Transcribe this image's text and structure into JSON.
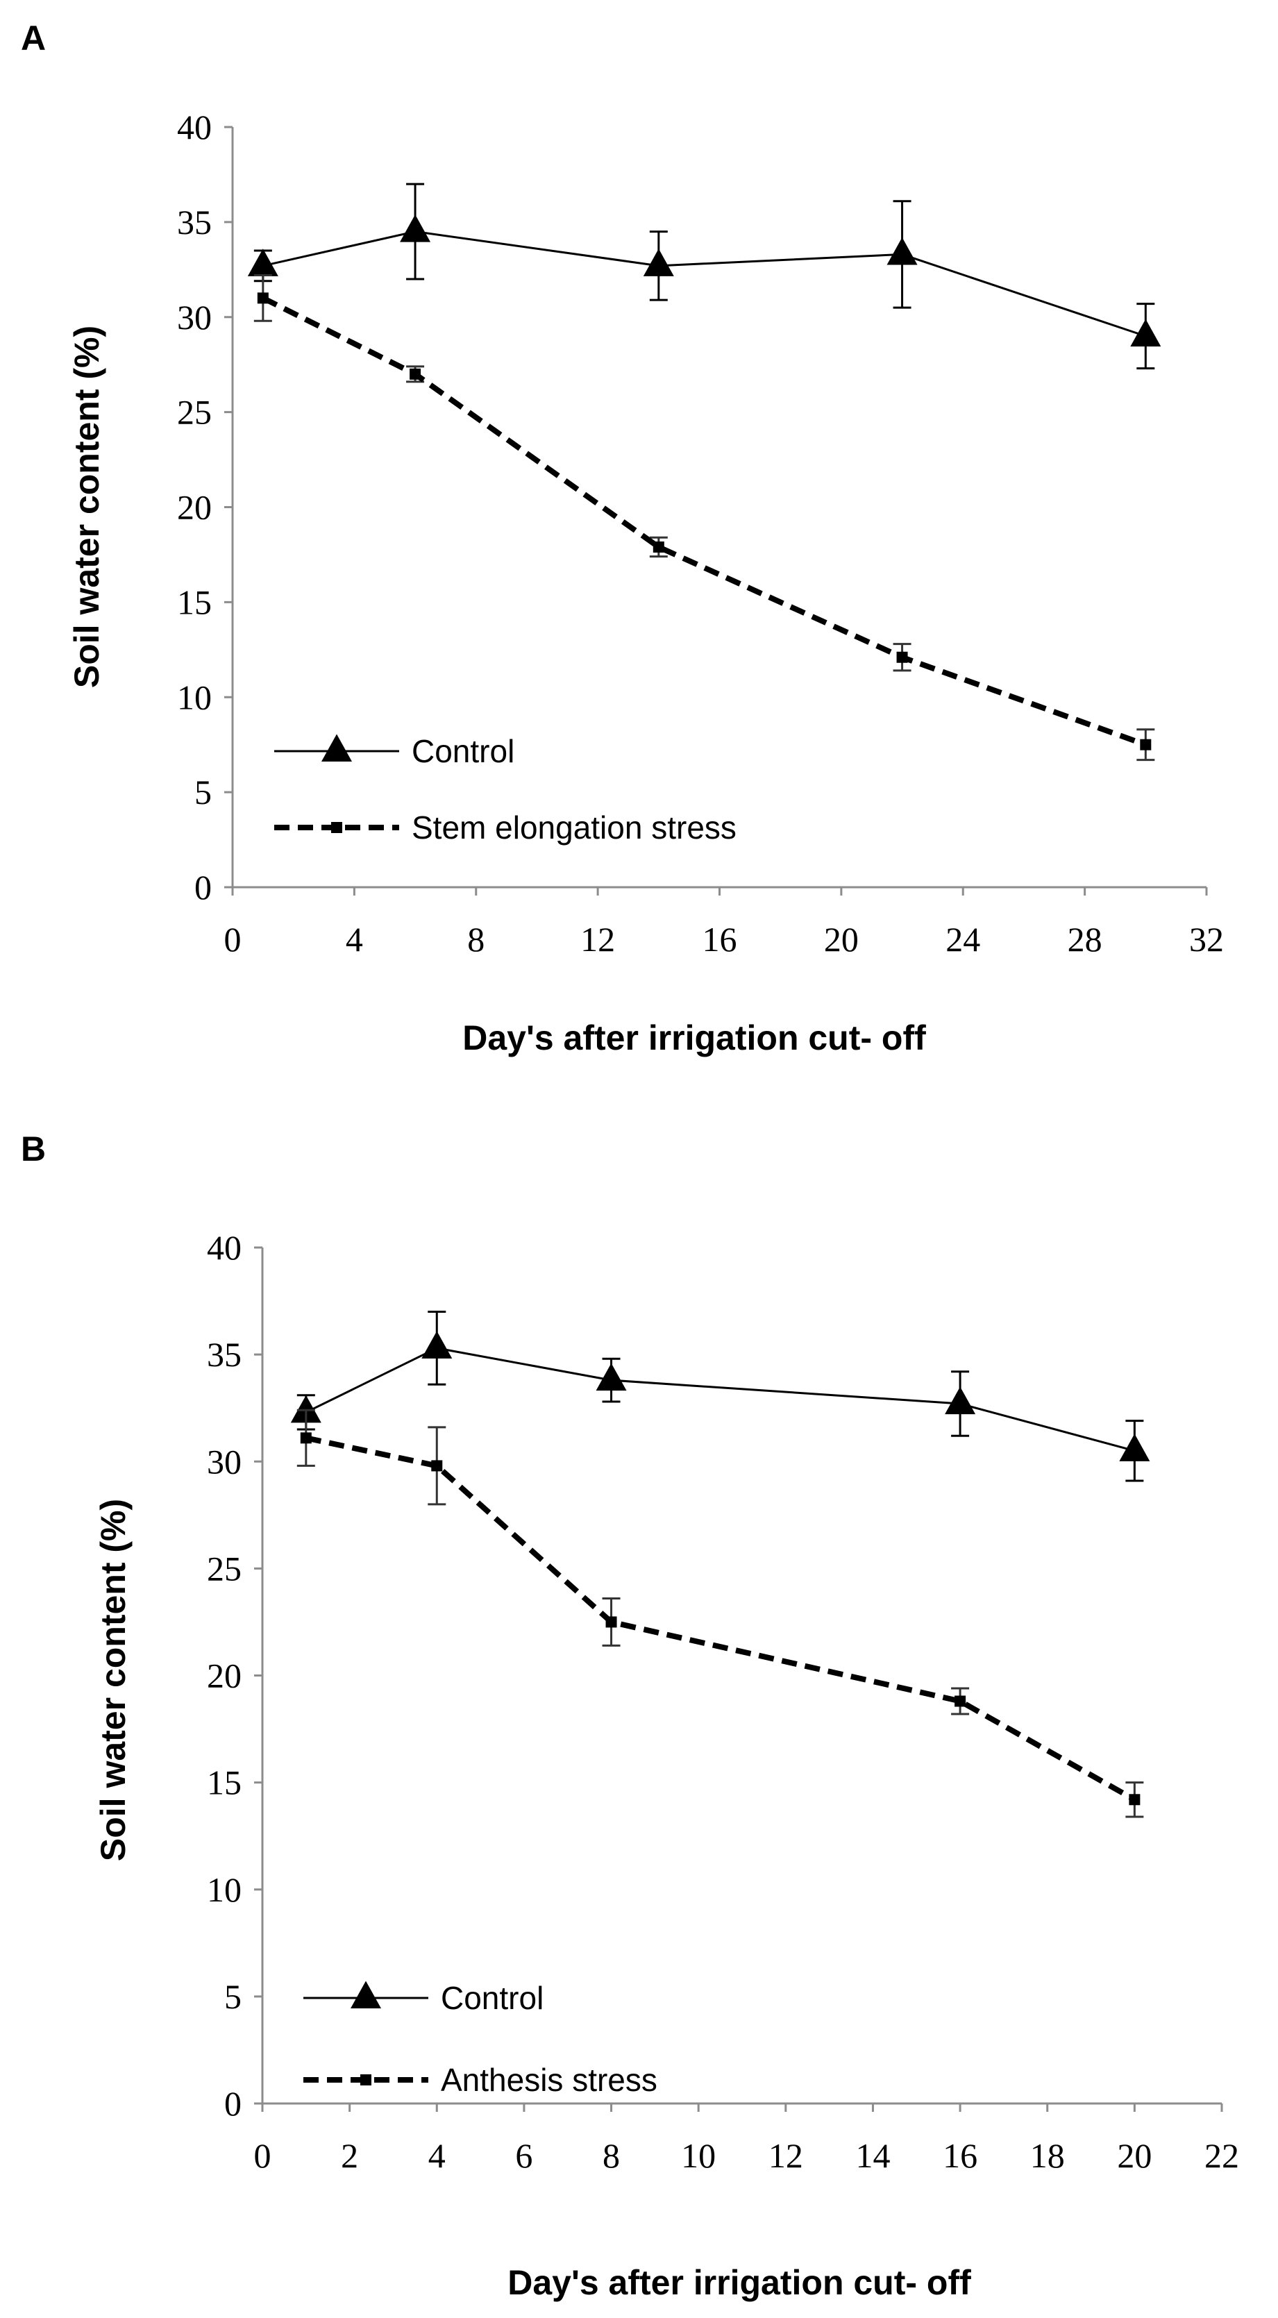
{
  "chart_data": [
    {
      "panel": "A",
      "type": "line",
      "xlabel": "Day's after irrigation cut- off",
      "ylabel": "Soil water content (%)",
      "xlim": [
        0,
        32
      ],
      "ylim": [
        0,
        40
      ],
      "x_ticks": [
        0,
        4,
        8,
        12,
        16,
        20,
        24,
        28,
        32
      ],
      "y_ticks": [
        0,
        5,
        10,
        15,
        20,
        25,
        30,
        35,
        40
      ],
      "grid": false,
      "legend_position": "bottom-left",
      "series": [
        {
          "name": "Control",
          "style": "solid",
          "marker": "triangle",
          "x": [
            1,
            6,
            14,
            22,
            30
          ],
          "values": [
            32.7,
            34.5,
            32.7,
            33.3,
            29.0
          ],
          "errors": [
            0.8,
            2.5,
            1.8,
            2.8,
            1.7
          ]
        },
        {
          "name": "Stem elongation stress",
          "style": "dashed",
          "marker": "square",
          "x": [
            1,
            6,
            14,
            22,
            30
          ],
          "values": [
            31.0,
            27.0,
            17.9,
            12.1,
            7.5
          ],
          "errors": [
            1.2,
            0.4,
            0.5,
            0.7,
            0.8
          ]
        }
      ]
    },
    {
      "panel": "B",
      "type": "line",
      "xlabel": "Day's after irrigation cut- off",
      "ylabel": "Soil water content (%)",
      "xlim": [
        0,
        22
      ],
      "ylim": [
        0,
        40
      ],
      "x_ticks": [
        0,
        2,
        4,
        6,
        8,
        10,
        12,
        14,
        16,
        18,
        20,
        22
      ],
      "y_ticks": [
        0,
        5,
        10,
        15,
        20,
        25,
        30,
        35,
        40
      ],
      "grid": false,
      "legend_position": "bottom-left",
      "series": [
        {
          "name": "Control",
          "style": "solid",
          "marker": "triangle",
          "x": [
            1,
            4,
            8,
            16,
            20
          ],
          "values": [
            32.3,
            35.3,
            33.8,
            32.7,
            30.5
          ],
          "errors": [
            0.8,
            1.7,
            1.0,
            1.5,
            1.4
          ]
        },
        {
          "name": "Anthesis stress",
          "style": "dashed",
          "marker": "square",
          "x": [
            1,
            4,
            8,
            16,
            20
          ],
          "values": [
            31.1,
            29.8,
            22.5,
            18.8,
            14.2
          ],
          "errors": [
            1.3,
            1.8,
            1.1,
            0.6,
            0.8
          ]
        }
      ]
    }
  ]
}
